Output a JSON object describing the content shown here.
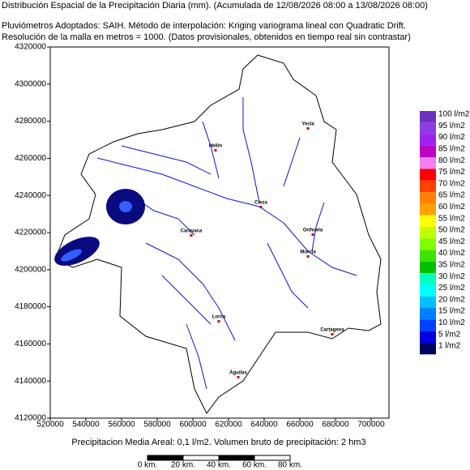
{
  "header": {
    "line1": "Distribución Espacial de la Precipitación Diaria (mm). (Acumulada de 12/08/2026 08:00 a 13/08/2026 08:00)",
    "line2": "Pluviómetros Adoptados: SAIH.  Método de interpolación: Kriging variograma lineal con Quadratic Drift.",
    "line3": "Resolución de la malla en metros = 1000. (Datos provisionales, obtenidos en tiempo real sin contrastar)"
  },
  "map": {
    "x_ticks": [
      520000,
      540000,
      560000,
      580000,
      600000,
      620000,
      640000,
      660000,
      680000,
      700000
    ],
    "y_ticks": [
      4320000,
      4300000,
      4280000,
      4260000,
      4240000,
      4220000,
      4200000,
      4180000,
      4160000,
      4140000,
      4120000
    ],
    "towns": [
      "Yecla",
      "Hellín",
      "Cieza",
      "Caravaca",
      "Orihuela",
      "Murcia",
      "Lorca",
      "Cartagena",
      "Águilas"
    ],
    "legend": [
      {
        "label": "100 l/m2",
        "color": "#7030c0"
      },
      {
        "label": "95 l/m2",
        "color": "#8c3ce0"
      },
      {
        "label": "90 l/m2",
        "color": "#a020f0"
      },
      {
        "label": "85 l/m2",
        "color": "#c000c0"
      },
      {
        "label": "80 l/m2",
        "color": "#f080f0"
      },
      {
        "label": "75 l/m2",
        "color": "#ff0000"
      },
      {
        "label": "70 l/m2",
        "color": "#ff4000"
      },
      {
        "label": "65 l/m2",
        "color": "#ff8000"
      },
      {
        "label": "60 l/m2",
        "color": "#ffa000"
      },
      {
        "label": "55 l/m2",
        "color": "#ffff00"
      },
      {
        "label": "50 l/m2",
        "color": "#c0ff00"
      },
      {
        "label": "45 l/m2",
        "color": "#80ff00"
      },
      {
        "label": "40 l/m2",
        "color": "#40e000"
      },
      {
        "label": "35 l/m2",
        "color": "#00c000"
      },
      {
        "label": "30 l/m2",
        "color": "#00ffc0"
      },
      {
        "label": "25 l/m2",
        "color": "#00ffff"
      },
      {
        "label": "20 l/m2",
        "color": "#00c0ff"
      },
      {
        "label": "15 l/m2",
        "color": "#0080ff"
      },
      {
        "label": "10 l/m2",
        "color": "#0040ff"
      },
      {
        "label": "5 l/m2",
        "color": "#0000e0"
      },
      {
        "label": "1 l/m2",
        "color": "#000060"
      }
    ]
  },
  "footer": "Precipitacion Media Areal: 0,1 l/m2. Volumen bruto de precipitación: 2 hm3",
  "scale_bar": [
    "0 km.",
    "20 km.",
    "40 km.",
    "60 km.",
    "80 km."
  ]
}
